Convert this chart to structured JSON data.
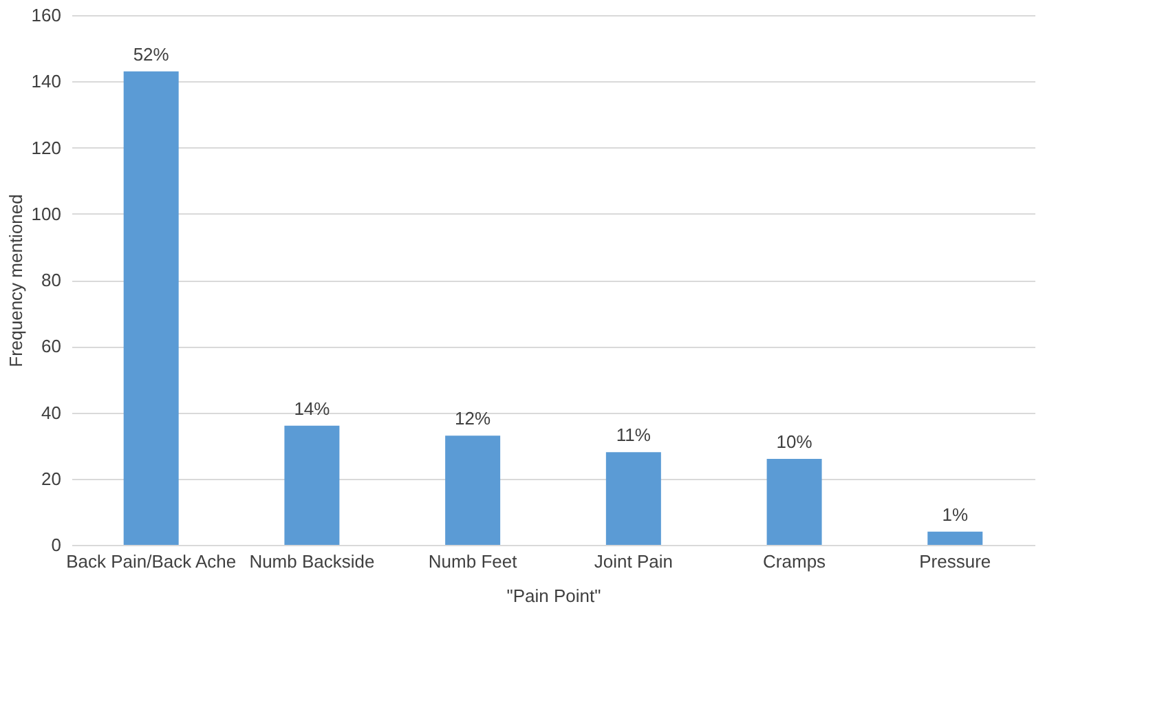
{
  "chart_data": {
    "type": "bar",
    "xlabel": "\"Pain Point\"",
    "ylabel": "Frequency mentioned",
    "categories": [
      "Back Pain/Back Ache",
      "Numb Backside",
      "Numb Feet",
      "Joint Pain",
      "Cramps",
      "Pressure"
    ],
    "values": [
      143,
      36,
      33,
      28,
      26,
      4
    ],
    "annotations": [
      {
        "text": "52%",
        "x": "Back Pain/Back Ache",
        "y": 143
      },
      {
        "text": "14%",
        "x": "Numb Backside",
        "y": 36
      },
      {
        "text": "12%",
        "x": "Numb Feet",
        "y": 33
      },
      {
        "text": "11%",
        "x": "Joint Pain",
        "y": 28
      },
      {
        "text": "10%",
        "x": "Cramps",
        "y": 26
      },
      {
        "text": "1%",
        "x": "Pressure",
        "y": 4
      }
    ],
    "color": "#5b9bd5",
    "ylim": [
      0,
      160
    ],
    "yticks": [
      0,
      20,
      40,
      60,
      80,
      100,
      120,
      140,
      160
    ],
    "grid": "y"
  }
}
